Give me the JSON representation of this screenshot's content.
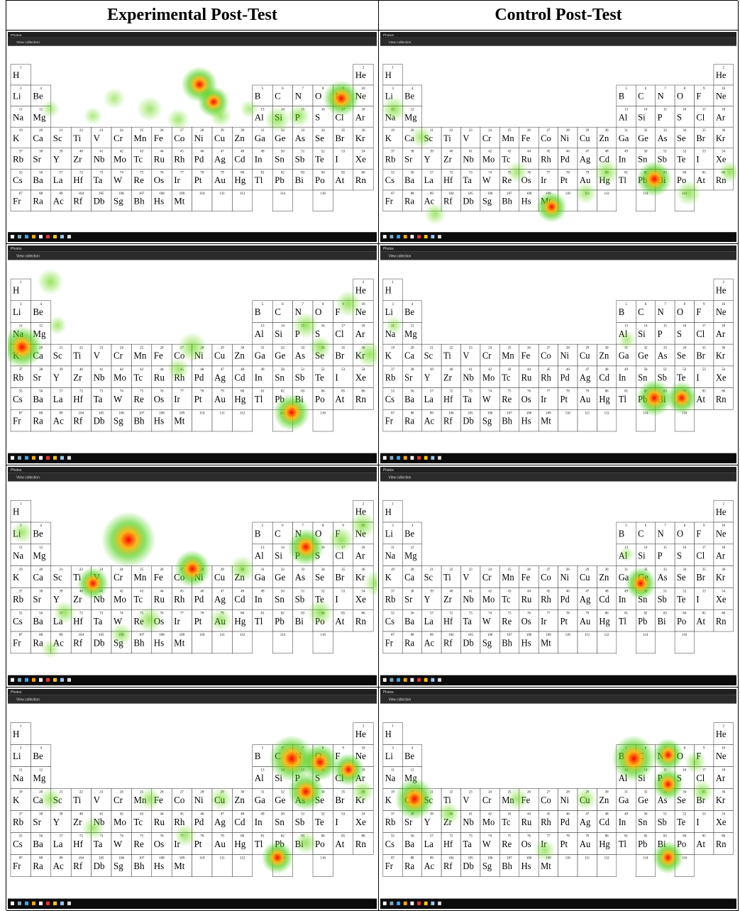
{
  "header": {
    "columns": [
      "Experimental Post-Test",
      "Control Post-Test"
    ]
  },
  "screenshot": {
    "app_title": "Photos",
    "toolbar_label": "View collection"
  },
  "elements": [
    {
      "n": 1,
      "s": "H"
    },
    {
      "n": 2,
      "s": "He"
    },
    {
      "n": 3,
      "s": "Li"
    },
    {
      "n": 4,
      "s": "Be"
    },
    {
      "n": 5,
      "s": "B"
    },
    {
      "n": 6,
      "s": "C"
    },
    {
      "n": 7,
      "s": "N"
    },
    {
      "n": 8,
      "s": "O"
    },
    {
      "n": 9,
      "s": "F"
    },
    {
      "n": 10,
      "s": "Ne"
    },
    {
      "n": 11,
      "s": "Na"
    },
    {
      "n": 12,
      "s": "Mg"
    },
    {
      "n": 13,
      "s": "Al"
    },
    {
      "n": 14,
      "s": "Si"
    },
    {
      "n": 15,
      "s": "P"
    },
    {
      "n": 16,
      "s": "S"
    },
    {
      "n": 17,
      "s": "Cl"
    },
    {
      "n": 18,
      "s": "Ar"
    },
    {
      "n": 19,
      "s": "K"
    },
    {
      "n": 20,
      "s": "Ca"
    },
    {
      "n": 21,
      "s": "Sc"
    },
    {
      "n": 22,
      "s": "Ti"
    },
    {
      "n": 23,
      "s": "V"
    },
    {
      "n": 24,
      "s": "Cr"
    },
    {
      "n": 25,
      "s": "Mn"
    },
    {
      "n": 26,
      "s": "Fe"
    },
    {
      "n": 27,
      "s": "Co"
    },
    {
      "n": 28,
      "s": "Ni"
    },
    {
      "n": 29,
      "s": "Cu"
    },
    {
      "n": 30,
      "s": "Zn"
    },
    {
      "n": 31,
      "s": "Ga"
    },
    {
      "n": 32,
      "s": "Ge"
    },
    {
      "n": 33,
      "s": "As"
    },
    {
      "n": 34,
      "s": "Se"
    },
    {
      "n": 35,
      "s": "Br"
    },
    {
      "n": 36,
      "s": "Kr"
    },
    {
      "n": 37,
      "s": "Rb"
    },
    {
      "n": 38,
      "s": "Sr"
    },
    {
      "n": 39,
      "s": "Y"
    },
    {
      "n": 40,
      "s": "Zr"
    },
    {
      "n": 41,
      "s": "Nb"
    },
    {
      "n": 42,
      "s": "Mo"
    },
    {
      "n": 43,
      "s": "Tc"
    },
    {
      "n": 44,
      "s": "Ru"
    },
    {
      "n": 45,
      "s": "Rh"
    },
    {
      "n": 46,
      "s": "Pd"
    },
    {
      "n": 47,
      "s": "Ag"
    },
    {
      "n": 48,
      "s": "Cd"
    },
    {
      "n": 49,
      "s": "In"
    },
    {
      "n": 50,
      "s": "Sn"
    },
    {
      "n": 51,
      "s": "Sb"
    },
    {
      "n": 52,
      "s": "Te"
    },
    {
      "n": 53,
      "s": "I"
    },
    {
      "n": 54,
      "s": "Xe"
    },
    {
      "n": 55,
      "s": "Cs"
    },
    {
      "n": 56,
      "s": "Ba"
    },
    {
      "n": 57,
      "s": "La"
    },
    {
      "n": 72,
      "s": "Hf"
    },
    {
      "n": 73,
      "s": "Ta"
    },
    {
      "n": 74,
      "s": "W"
    },
    {
      "n": 75,
      "s": "Re"
    },
    {
      "n": 76,
      "s": "Os"
    },
    {
      "n": 77,
      "s": "Ir"
    },
    {
      "n": 78,
      "s": "Pt"
    },
    {
      "n": 79,
      "s": "Au"
    },
    {
      "n": 80,
      "s": "Hg"
    },
    {
      "n": 81,
      "s": "Tl"
    },
    {
      "n": 82,
      "s": "Pb"
    },
    {
      "n": 83,
      "s": "Bi"
    },
    {
      "n": 84,
      "s": "Po"
    },
    {
      "n": 85,
      "s": "At"
    },
    {
      "n": 86,
      "s": "Rn"
    },
    {
      "n": 87,
      "s": "Fr"
    },
    {
      "n": 88,
      "s": "Ra"
    },
    {
      "n": 89,
      "s": "Ac"
    },
    {
      "n": 104,
      "s": "Rf"
    },
    {
      "n": 105,
      "s": "Db"
    },
    {
      "n": 106,
      "s": "Sg"
    },
    {
      "n": 107,
      "s": "Bh"
    },
    {
      "n": 108,
      "s": "Hs"
    },
    {
      "n": 109,
      "s": "Mt"
    },
    {
      "n": 110
    },
    {
      "n": 111
    },
    {
      "n": 112
    },
    {
      "n": 114
    },
    {
      "n": 116
    }
  ]
}
